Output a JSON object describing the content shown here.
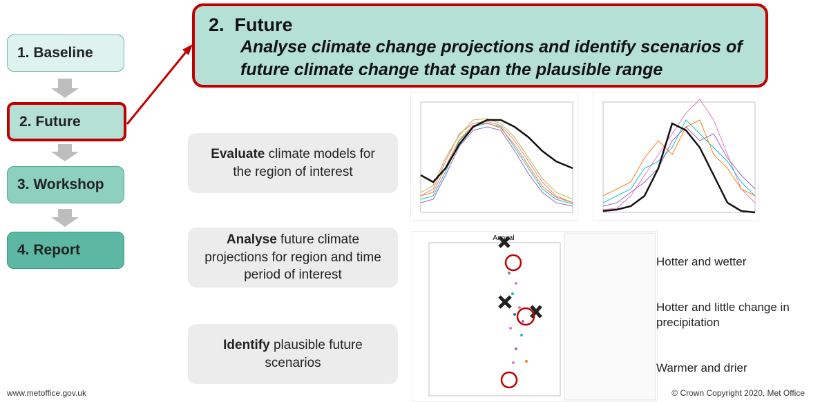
{
  "header": {
    "number": "2.",
    "title": "Future",
    "subtitle": "Analyse climate change projections and identify scenarios of future climate change that span the plausible range"
  },
  "steps": [
    "1. Baseline",
    "2. Future",
    "3. Workshop",
    "4. Report"
  ],
  "tasks": [
    {
      "bold": "Evaluate",
      "text": "climate models for the region of interest"
    },
    {
      "bold": "Analyse",
      "text": "future climate projections for region and time period of interest"
    },
    {
      "bold": "Identify",
      "text": "plausible future scenarios"
    }
  ],
  "scatter_label": "Annual",
  "annotations": [
    "Hotter and wetter",
    "Hotter and little change in precipitation",
    "Warmer and drier"
  ],
  "footer": {
    "left": "www.metoffice.gov.uk",
    "right": "© Crown Copyright 2020, Met Office"
  }
}
